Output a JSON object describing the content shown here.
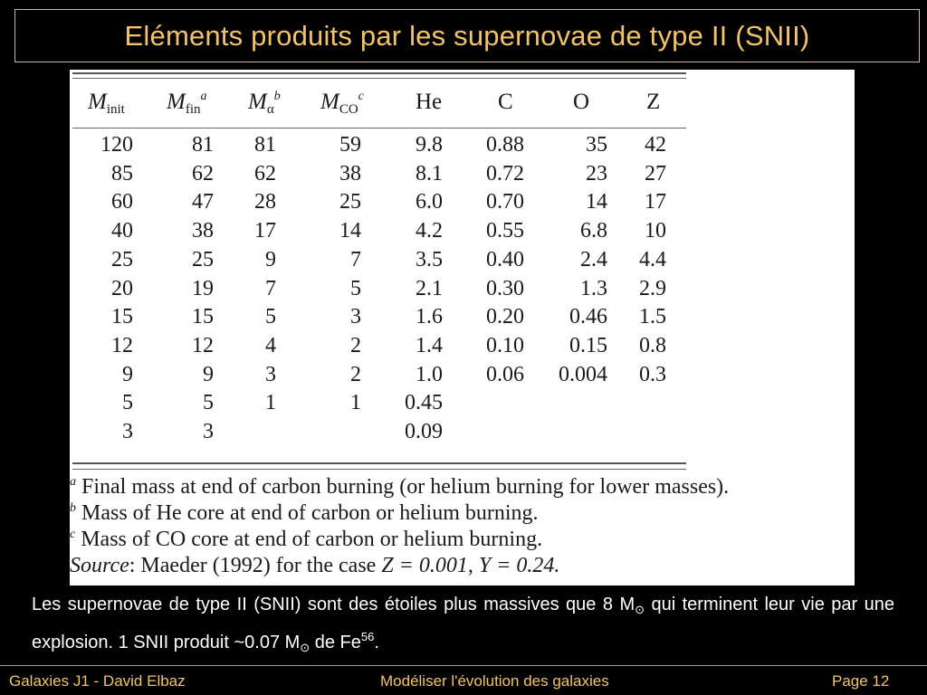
{
  "slide": {
    "title": "Eléments produits par les supernovae de type II (SNII)"
  },
  "table": {
    "headers": [
      {
        "main": "M",
        "sub": "init",
        "sup": ""
      },
      {
        "main": "M",
        "sub": "fin",
        "sup": "a"
      },
      {
        "main": "M",
        "sub": "α",
        "sup": "b"
      },
      {
        "main": "M",
        "sub": "CO",
        "sup": "c"
      },
      {
        "main": "He",
        "sub": "",
        "sup": ""
      },
      {
        "main": "C",
        "sub": "",
        "sup": ""
      },
      {
        "main": "O",
        "sub": "",
        "sup": ""
      },
      {
        "main": "Z",
        "sub": "",
        "sup": ""
      }
    ],
    "rows": [
      [
        "120",
        "81",
        "81",
        "59",
        "9.8",
        "0.88",
        "35",
        "42"
      ],
      [
        "85",
        "62",
        "62",
        "38",
        "8.1",
        "0.72",
        "23",
        "27"
      ],
      [
        "60",
        "47",
        "28",
        "25",
        "6.0",
        "0.70",
        "14",
        "17"
      ],
      [
        "40",
        "38",
        "17",
        "14",
        "4.2",
        "0.55",
        "6.8",
        "10"
      ],
      [
        "25",
        "25",
        "9",
        "7",
        "3.5",
        "0.40",
        "2.4",
        "4.4"
      ],
      [
        "20",
        "19",
        "7",
        "5",
        "2.1",
        "0.30",
        "1.3",
        "2.9"
      ],
      [
        "15",
        "15",
        "5",
        "3",
        "1.6",
        "0.20",
        "0.46",
        "1.5"
      ],
      [
        "12",
        "12",
        "4",
        "2",
        "1.4",
        "0.10",
        "0.15",
        "0.8"
      ],
      [
        "9",
        "9",
        "3",
        "2",
        "1.0",
        "0.06",
        "0.004",
        "0.3"
      ],
      [
        "5",
        "5",
        "1",
        "1",
        "0.45",
        "",
        "",
        ""
      ],
      [
        "3",
        "3",
        "",
        "",
        "0.09",
        "",
        "",
        ""
      ]
    ],
    "footnotes": {
      "a_mark": "a",
      "a": "Final mass at end of carbon burning (or helium burning for lower masses).",
      "b_mark": "b",
      "b": "Mass of He core at end of carbon or helium burning.",
      "c_mark": "c",
      "c": "Mass of CO core at end of carbon or helium burning.",
      "source_label": "Source",
      "source_text": ": Maeder (1992) for the case ",
      "source_z": "Z = 0.001, Y = 0.24."
    }
  },
  "body": {
    "p1": "Les supernovae de type II (SNII) sont des étoiles plus massives que 8 M",
    "sun": "⊙",
    "p2": " qui terminent leur vie par une explosion. 1 SNII produit ~0.07 M",
    "p3": " de Fe",
    "fe_sup": "56",
    "p4": "."
  },
  "footer": {
    "left": "Galaxies J1 - David Elbaz",
    "center": "Modéliser l'évolution des galaxies",
    "right": "Page 12"
  }
}
